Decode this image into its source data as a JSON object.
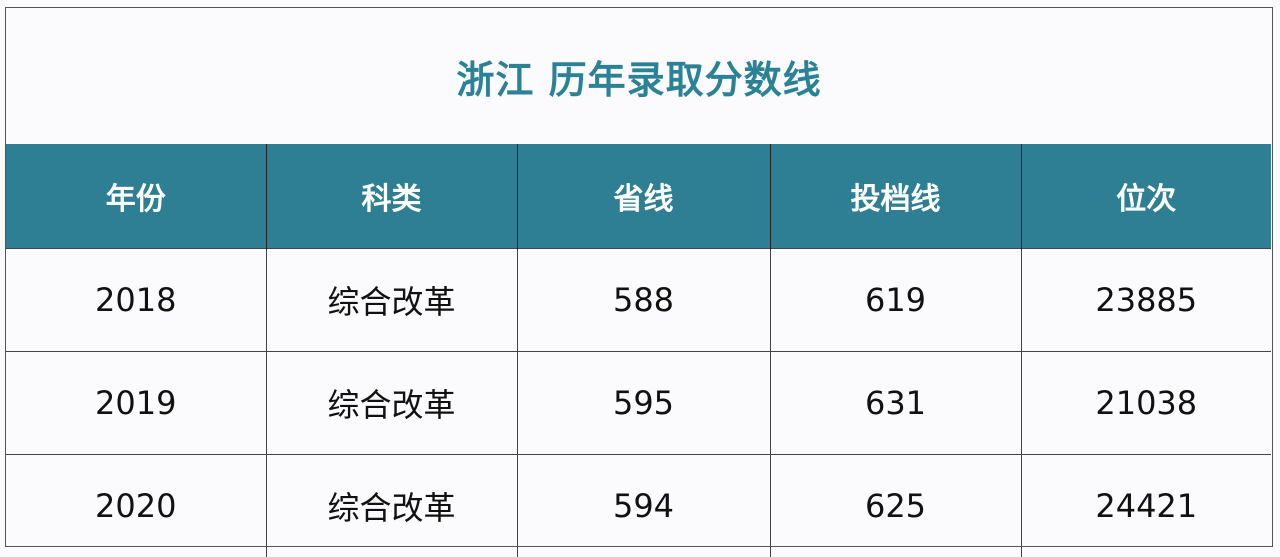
{
  "title": "浙江 历年录取分数线",
  "colors": {
    "header_bg": "#2e7f93",
    "title": "#2b8296"
  },
  "headers": [
    "年份",
    "科类",
    "省线",
    "投档线",
    "位次"
  ],
  "rows": [
    [
      "2018",
      "综合改革",
      "588",
      "619",
      "23885"
    ],
    [
      "2019",
      "综合改革",
      "595",
      "631",
      "21038"
    ],
    [
      "2020",
      "综合改革",
      "594",
      "625",
      "24421"
    ]
  ]
}
